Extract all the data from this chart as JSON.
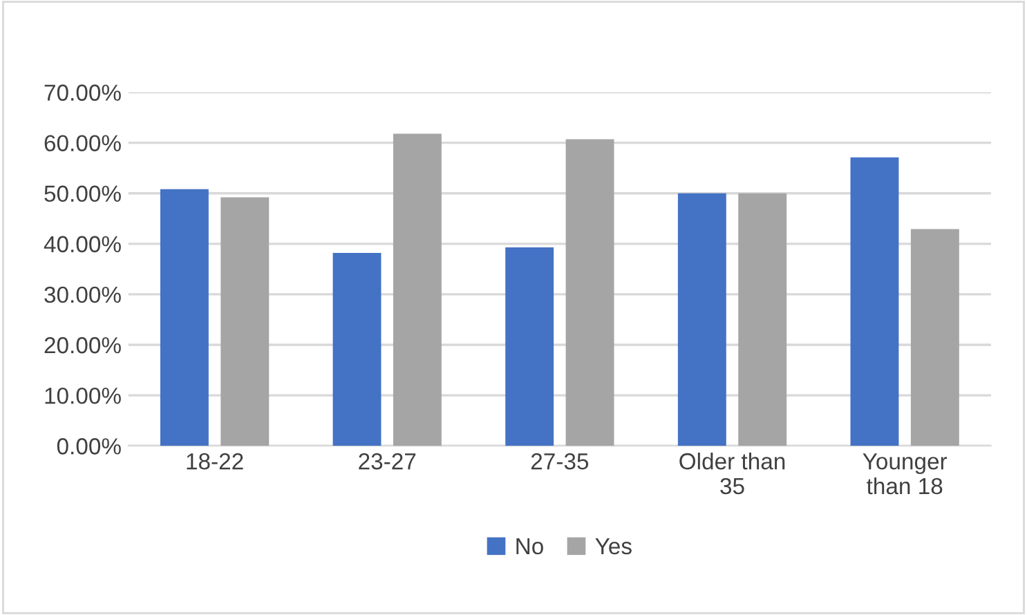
{
  "chart_data": {
    "type": "bar",
    "categories": [
      "18-22",
      "23-27",
      "27-35",
      "Older than\n35",
      "Younger\nthan 18"
    ],
    "series": [
      {
        "name": "No",
        "color": "#4472c4",
        "values": [
          50.8,
          38.2,
          39.3,
          50.0,
          57.1
        ]
      },
      {
        "name": "Yes",
        "color": "#a5a5a5",
        "values": [
          49.2,
          61.8,
          60.7,
          50.0,
          42.9
        ]
      }
    ],
    "ylim": [
      0,
      70
    ],
    "yticks": [
      {
        "value": 0,
        "label": "0.00%"
      },
      {
        "value": 10,
        "label": "10.00%"
      },
      {
        "value": 20,
        "label": "20.00%"
      },
      {
        "value": 30,
        "label": "30.00%"
      },
      {
        "value": 40,
        "label": "40.00%"
      },
      {
        "value": 50,
        "label": "50.00%"
      },
      {
        "value": 60,
        "label": "60.00%"
      },
      {
        "value": 70,
        "label": "70.00%"
      }
    ],
    "grid": "y",
    "legend": "bottom"
  }
}
